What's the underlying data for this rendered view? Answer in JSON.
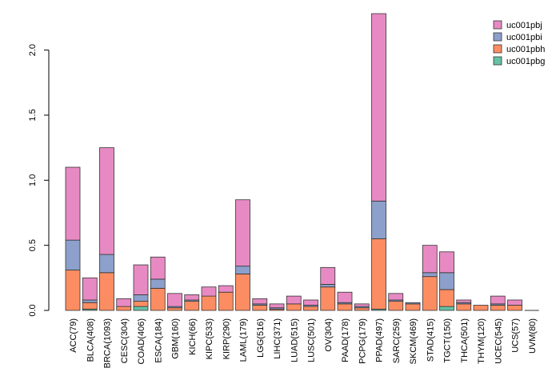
{
  "chart_data": {
    "type": "bar",
    "stacked": true,
    "title": "",
    "xlabel": "",
    "ylabel": "",
    "ylim": [
      0,
      2.3
    ],
    "yticks": [
      0.0,
      0.5,
      1.0,
      1.5,
      2.0
    ],
    "ytick_labels": [
      "0.0",
      "0.5",
      "1.0",
      "1.5",
      "2.0"
    ],
    "grid": false,
    "legend_position": "top-right",
    "categories": [
      "ACC(79)",
      "BLCA(408)",
      "BRCA(1093)",
      "CESC(304)",
      "COAD(406)",
      "ESCA(184)",
      "GBM(160)",
      "KICH(66)",
      "KIPC(533)",
      "KIRP(290)",
      "LAML(179)",
      "LGG(516)",
      "LIHC(371)",
      "LUAD(515)",
      "LUSC(501)",
      "OV(304)",
      "PAAD(178)",
      "PCPG(179)",
      "PPAD(497)",
      "SARC(259)",
      "SKCM(469)",
      "STAD(415)",
      "TGCT(150)",
      "THCA(501)",
      "THYM(120)",
      "UCEC(545)",
      "UCS(57)",
      "UVM(80)"
    ],
    "series": [
      {
        "name": "uc001pbg",
        "color": "#66c2a5",
        "values": [
          0,
          0.01,
          0,
          0,
          0.03,
          0,
          0,
          0,
          0,
          0,
          0,
          0,
          0,
          0,
          0,
          0,
          0,
          0,
          0.01,
          0,
          0,
          0,
          0.03,
          0,
          0,
          0,
          0,
          0
        ]
      },
      {
        "name": "uc001pbh",
        "color": "#fc8d62",
        "values": [
          0.31,
          0.05,
          0.29,
          0.03,
          0.04,
          0.17,
          0.02,
          0.07,
          0.11,
          0.14,
          0.28,
          0.04,
          0.01,
          0.05,
          0.03,
          0.18,
          0.05,
          0.02,
          0.54,
          0.07,
          0.05,
          0.26,
          0.13,
          0.05,
          0.04,
          0.04,
          0.04,
          0
        ]
      },
      {
        "name": "uc001pbi",
        "color": "#8da0cb",
        "values": [
          0.23,
          0.02,
          0.14,
          0,
          0.05,
          0.07,
          0.01,
          0.01,
          0,
          0,
          0.06,
          0.01,
          0.01,
          0,
          0.01,
          0.02,
          0.01,
          0.01,
          0.29,
          0.01,
          0.01,
          0.03,
          0.13,
          0.01,
          0,
          0.01,
          0,
          0
        ]
      },
      {
        "name": "uc001pbj",
        "color": "#e78ac3",
        "values": [
          0.56,
          0.17,
          0.82,
          0.06,
          0.23,
          0.17,
          0.1,
          0.04,
          0.07,
          0.05,
          0.51,
          0.04,
          0.03,
          0.06,
          0.04,
          0.13,
          0.08,
          0.02,
          1.44,
          0.05,
          0,
          0.21,
          0.16,
          0.02,
          0,
          0.06,
          0.04,
          0
        ]
      }
    ]
  }
}
